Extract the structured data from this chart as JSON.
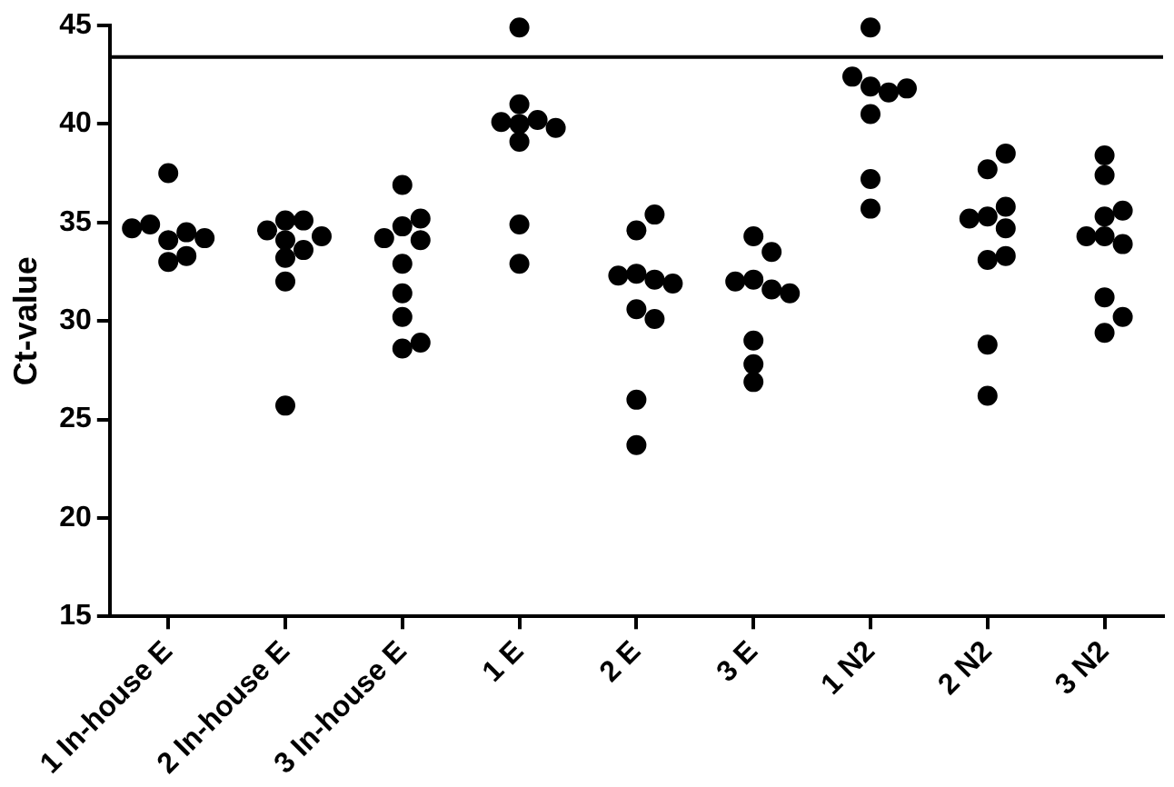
{
  "chart_data": {
    "type": "scatter",
    "ylabel": "Ct-value",
    "categories": [
      "1 In-house E",
      "2 In-house E",
      "3 In-house E",
      "1 E",
      "2 E",
      "3 E",
      "1 N2",
      "2 N2",
      "3 N2"
    ],
    "series": [
      {
        "color": "#000000",
        "x": [
          "1 In-house E",
          "1 In-house E",
          "1 In-house E",
          "1 In-house E",
          "1 In-house E",
          "1 In-house E",
          "1 In-house E",
          "1 In-house E"
        ],
        "values": [
          37.5,
          34.1,
          34.5,
          33.0,
          34.9,
          34.2,
          33.3,
          34.7
        ]
      },
      {
        "color": "#000000",
        "x": [
          "2 In-house E",
          "2 In-house E",
          "2 In-house E",
          "2 In-house E",
          "2 In-house E",
          "2 In-house E",
          "2 In-house E",
          "2 In-house E",
          "2 In-house E"
        ],
        "values": [
          35.1,
          35.1,
          34.6,
          34.1,
          33.2,
          33.6,
          34.3,
          32.0,
          25.7
        ]
      },
      {
        "color": "#000000",
        "x": [
          "3 In-house E",
          "3 In-house E",
          "3 In-house E",
          "3 In-house E",
          "3 In-house E",
          "3 In-house E",
          "3 In-house E",
          "3 In-house E",
          "3 In-house E",
          "3 In-house E"
        ],
        "values": [
          34.8,
          34.1,
          32.9,
          30.2,
          36.9,
          35.2,
          34.2,
          31.4,
          28.6,
          28.9
        ]
      },
      {
        "color": "#000000",
        "x": [
          "1 E",
          "1 E",
          "1 E",
          "1 E",
          "1 E",
          "1 E",
          "1 E",
          "1 E",
          "1 E"
        ],
        "values": [
          44.9,
          41.0,
          40.0,
          40.2,
          40.1,
          39.8,
          39.1,
          34.9,
          32.9
        ]
      },
      {
        "color": "#000000",
        "x": [
          "2 E",
          "2 E",
          "2 E",
          "2 E",
          "2 E",
          "2 E",
          "2 E",
          "2 E",
          "2 E",
          "2 E"
        ],
        "values": [
          34.6,
          35.4,
          32.4,
          32.1,
          32.3,
          31.9,
          30.6,
          30.1,
          26.0,
          23.7
        ]
      },
      {
        "color": "#000000",
        "x": [
          "3 E",
          "3 E",
          "3 E",
          "3 E",
          "3 E",
          "3 E",
          "3 E",
          "3 E",
          "3 E"
        ],
        "values": [
          34.3,
          33.5,
          32.1,
          31.6,
          32.0,
          31.4,
          29.0,
          27.8,
          26.9
        ]
      },
      {
        "color": "#000000",
        "x": [
          "1 N2",
          "1 N2",
          "1 N2",
          "1 N2",
          "1 N2",
          "1 N2",
          "1 N2",
          "1 N2"
        ],
        "values": [
          44.9,
          41.9,
          41.6,
          42.4,
          41.8,
          40.5,
          37.2,
          35.7
        ]
      },
      {
        "color": "#000000",
        "x": [
          "2 N2",
          "2 N2",
          "2 N2",
          "2 N2",
          "2 N2",
          "2 N2",
          "2 N2",
          "2 N2",
          "2 N2",
          "2 N2"
        ],
        "values": [
          37.7,
          38.5,
          35.3,
          34.7,
          35.2,
          35.8,
          33.1,
          33.3,
          28.8,
          26.2
        ]
      },
      {
        "color": "#000000",
        "x": [
          "3 N2",
          "3 N2",
          "3 N2",
          "3 N2",
          "3 N2",
          "3 N2",
          "3 N2",
          "3 N2",
          "3 N2",
          "3 N2"
        ],
        "values": [
          37.4,
          38.4,
          35.3,
          35.6,
          34.3,
          33.9,
          34.3,
          31.2,
          29.4,
          30.2
        ]
      }
    ],
    "ylim": [
      15,
      45
    ],
    "yticks": [
      15,
      20,
      25,
      30,
      35,
      40,
      45
    ],
    "ref_lines": [
      {
        "axis": "y",
        "value": 43.4,
        "color": "#000000"
      }
    ],
    "grid": false,
    "legend": false,
    "marker": "circle"
  }
}
